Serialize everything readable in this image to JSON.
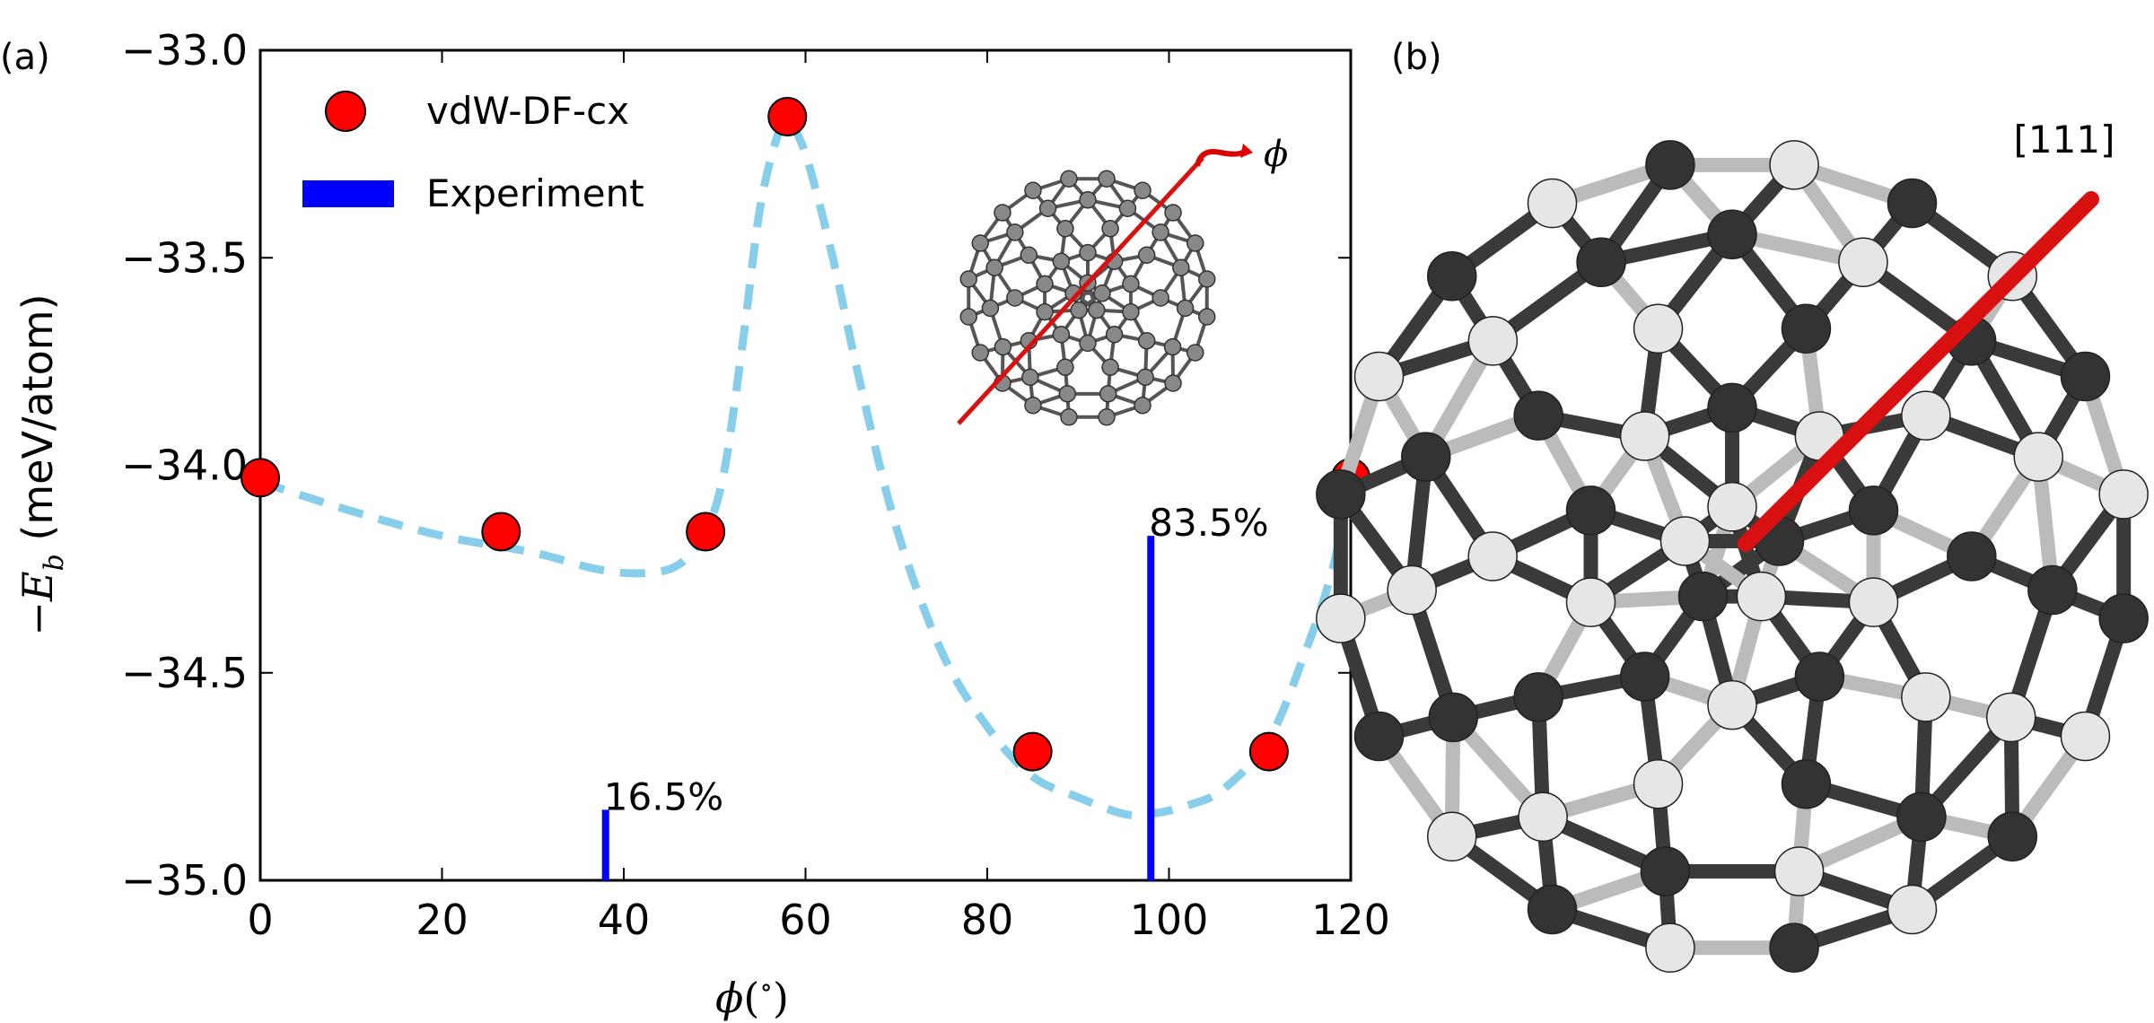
{
  "panel_a": {
    "tag": "(a)"
  },
  "panel_b": {
    "tag": "(b)",
    "axis_label": "[111]"
  },
  "chart_data": {
    "type": "scatter",
    "xlabel": "ϕ(°)",
    "ylabel": "−E_b (meV/atom)",
    "ylabel_symbol": "E",
    "ylabel_subscript": "b",
    "ylabel_unit": "(meV/atom)",
    "xlim": [
      0,
      120
    ],
    "ylim": [
      -35.0,
      -33.0
    ],
    "y_inverted": true,
    "xticks": [
      0,
      20,
      40,
      60,
      80,
      100,
      120
    ],
    "xtick_labels": [
      "0",
      "20",
      "40",
      "60",
      "80",
      "100",
      "120"
    ],
    "yticks": [
      -33.0,
      -33.5,
      -34.0,
      -34.5,
      -35.0
    ],
    "ytick_labels": [
      "−33.0",
      "−33.5",
      "−34.0",
      "−34.5",
      "−35.0"
    ],
    "grid": false,
    "legend_position": "top-left",
    "series": [
      {
        "name": "vdW-DF-cx",
        "marker": "circle",
        "color": "#ff0000",
        "x": [
          0,
          26.5,
          49,
          58,
          85,
          111,
          120
        ],
        "y": [
          -34.03,
          -34.16,
          -34.16,
          -33.16,
          -34.69,
          -34.69,
          -34.03
        ]
      },
      {
        "name": "Experiment",
        "marker": "bar",
        "color": "#0000ff",
        "x": [
          38,
          98
        ],
        "y": [
          -34.83,
          -34.17
        ],
        "labels": [
          "16.5%",
          "83.5%"
        ]
      }
    ],
    "fit_curve": {
      "style": "dashed",
      "color": "#87ceeb",
      "x": [
        0,
        10,
        20,
        30,
        37,
        42,
        46,
        49,
        51,
        53,
        55,
        57,
        58,
        60,
        63,
        66,
        70,
        75,
        80,
        85,
        90,
        95,
        98,
        102,
        106,
        111,
        115,
        118,
        120
      ],
      "y": [
        -34.04,
        -34.11,
        -34.17,
        -34.21,
        -34.25,
        -34.26,
        -34.24,
        -34.16,
        -34.02,
        -33.72,
        -33.38,
        -33.2,
        -33.17,
        -33.25,
        -33.5,
        -33.8,
        -34.15,
        -34.45,
        -34.63,
        -34.75,
        -34.8,
        -34.84,
        -34.84,
        -34.82,
        -34.78,
        -34.66,
        -34.45,
        -34.25,
        -34.03
      ]
    },
    "inset_annotation": "ϕ"
  }
}
